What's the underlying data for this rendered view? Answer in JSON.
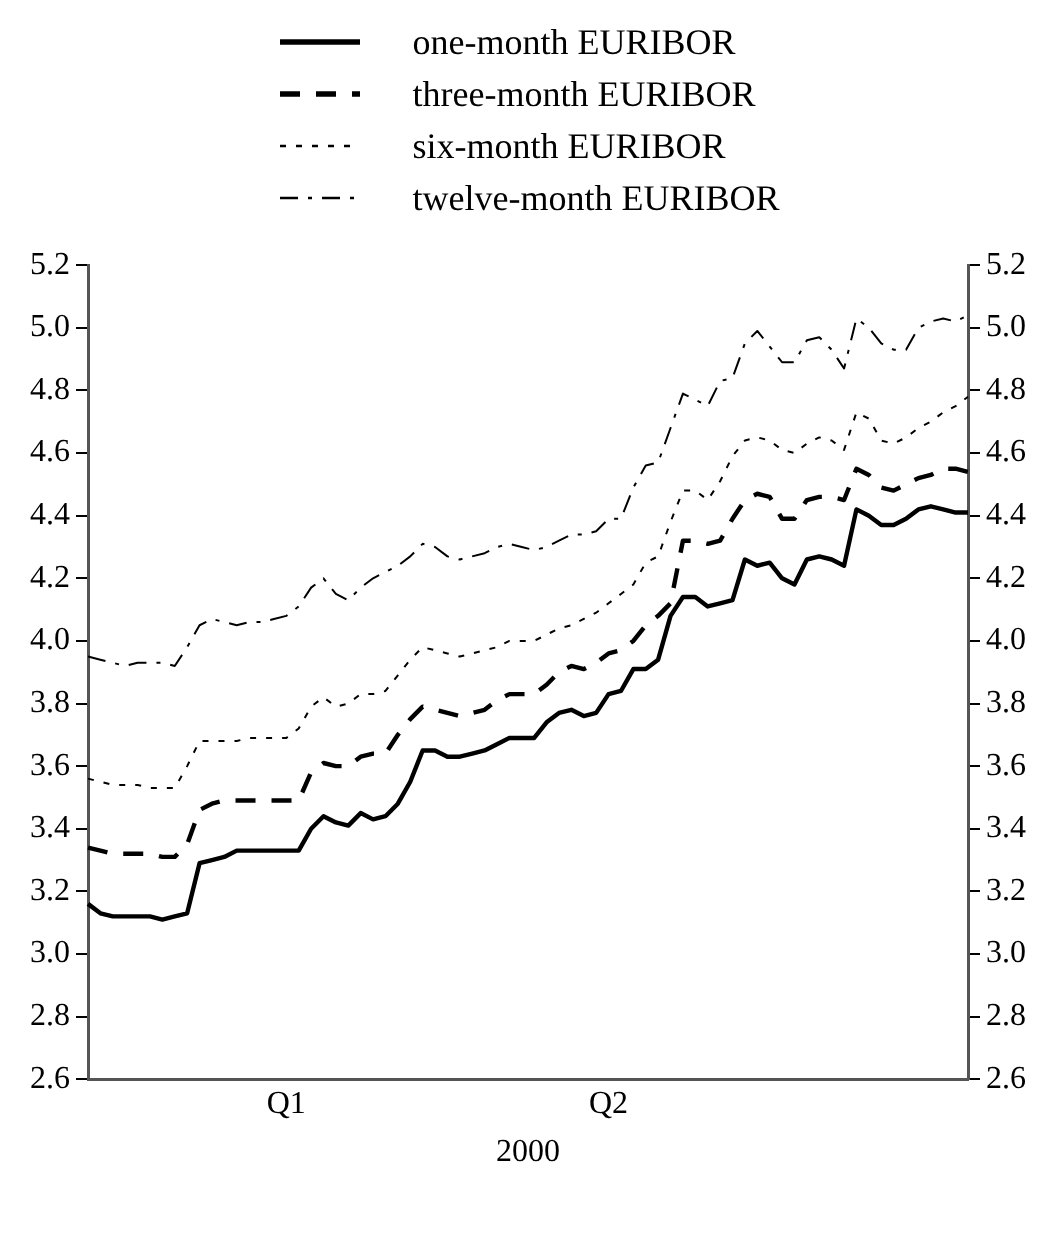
{
  "chart_data": {
    "type": "line",
    "xlabel": "2000",
    "legend": "top",
    "marker": "none",
    "grid": false,
    "categories": [
      null,
      null,
      null,
      null,
      null,
      null,
      null,
      null,
      null,
      null,
      null,
      null,
      null,
      null,
      null,
      null,
      "Q1",
      null,
      null,
      null,
      null,
      null,
      null,
      null,
      null,
      null,
      null,
      null,
      null,
      null,
      null,
      null,
      null,
      null,
      null,
      null,
      null,
      null,
      null,
      null,
      null,
      null,
      "Q2",
      null,
      null,
      null,
      null,
      null,
      null,
      null,
      null,
      null,
      null,
      null,
      null,
      null,
      null,
      null,
      null,
      null,
      null,
      null,
      null,
      null,
      null,
      null,
      null,
      null,
      null,
      null,
      null,
      null
    ],
    "ylim": [
      2.6,
      5.2
    ],
    "yticks": [
      2.6,
      2.8,
      {
        "value": 3,
        "label": "3.0"
      },
      3.2,
      3.4,
      3.6,
      3.8,
      {
        "value": 4,
        "label": "4.0"
      },
      4.2,
      4.4,
      4.6,
      4.8,
      {
        "value": 5,
        "label": "5.0"
      },
      5.2
    ],
    "y2lim": [
      2.6,
      5.2
    ],
    "y2ticks": [
      2.6,
      2.8,
      {
        "value": 3,
        "label": "3.0"
      },
      3.2,
      3.4,
      3.6,
      3.8,
      {
        "value": 4,
        "label": "4.0"
      },
      4.2,
      4.4,
      4.6,
      4.8,
      {
        "value": 5,
        "label": "5.0"
      },
      5.2
    ],
    "series": [
      {
        "name": "one-month EURIBOR",
        "color": "#000000",
        "line_style": "solid",
        "values": [
          3.16,
          3.13,
          3.12,
          3.12,
          3.12,
          3.12,
          3.11,
          3.12,
          3.13,
          3.29,
          3.3,
          3.31,
          3.33,
          3.33,
          3.33,
          3.33,
          3.33,
          3.33,
          3.4,
          3.44,
          3.42,
          3.41,
          3.45,
          3.43,
          3.44,
          3.48,
          3.55,
          3.65,
          3.65,
          3.63,
          3.63,
          3.64,
          3.65,
          3.67,
          3.69,
          3.69,
          3.69,
          3.74,
          3.77,
          3.78,
          3.76,
          3.77,
          3.83,
          3.84,
          3.91,
          3.91,
          3.94,
          4.08,
          4.14,
          4.14,
          4.11,
          4.12,
          4.13,
          4.26,
          4.24,
          4.25,
          4.2,
          4.18,
          4.26,
          4.27,
          4.26,
          4.24,
          4.42,
          4.4,
          4.37,
          4.37,
          4.39,
          4.42,
          4.43,
          4.42,
          4.41,
          4.41
        ]
      },
      {
        "name": "three-month EURIBOR",
        "color": "#000000",
        "line_style": "dashed",
        "values": [
          3.34,
          3.33,
          3.32,
          3.32,
          3.32,
          3.32,
          3.31,
          3.31,
          3.35,
          3.46,
          3.48,
          3.49,
          3.49,
          3.49,
          3.49,
          3.49,
          3.49,
          3.49,
          3.58,
          3.61,
          3.6,
          3.6,
          3.63,
          3.64,
          3.64,
          3.7,
          3.75,
          3.79,
          3.78,
          3.77,
          3.76,
          3.77,
          3.78,
          3.81,
          3.83,
          3.83,
          3.83,
          3.86,
          3.9,
          3.92,
          3.91,
          3.93,
          3.96,
          3.97,
          4.0,
          4.05,
          4.08,
          4.12,
          4.32,
          4.32,
          4.31,
          4.32,
          4.39,
          4.45,
          4.47,
          4.46,
          4.39,
          4.39,
          4.45,
          4.46,
          4.46,
          4.45,
          4.55,
          4.53,
          4.49,
          4.48,
          4.5,
          4.52,
          4.53,
          4.55,
          4.55,
          4.54
        ]
      },
      {
        "name": "six-month EURIBOR",
        "color": "#000000",
        "line_style": "dotted",
        "values": [
          3.56,
          3.55,
          3.54,
          3.54,
          3.54,
          3.53,
          3.53,
          3.53,
          3.6,
          3.68,
          3.68,
          3.68,
          3.68,
          3.69,
          3.69,
          3.69,
          3.69,
          3.72,
          3.79,
          3.82,
          3.79,
          3.8,
          3.83,
          3.83,
          3.84,
          3.89,
          3.94,
          3.98,
          3.97,
          3.96,
          3.95,
          3.96,
          3.97,
          3.98,
          4.0,
          4.0,
          4.0,
          4.02,
          4.04,
          4.05,
          4.07,
          4.09,
          4.12,
          4.15,
          4.18,
          4.25,
          4.27,
          4.38,
          4.48,
          4.48,
          4.45,
          4.51,
          4.59,
          4.64,
          4.65,
          4.64,
          4.61,
          4.6,
          4.63,
          4.65,
          4.64,
          4.61,
          4.73,
          4.71,
          4.64,
          4.63,
          4.65,
          4.68,
          4.7,
          4.73,
          4.75,
          4.78
        ]
      },
      {
        "name": "twelve-month EURIBOR",
        "color": "#000000",
        "line_style": "dashdot",
        "values": [
          3.95,
          3.94,
          3.93,
          3.92,
          3.93,
          3.93,
          3.93,
          3.92,
          3.98,
          4.05,
          4.07,
          4.06,
          4.05,
          4.06,
          4.06,
          4.07,
          4.08,
          4.11,
          4.17,
          4.2,
          4.15,
          4.13,
          4.17,
          4.2,
          4.22,
          4.24,
          4.27,
          4.31,
          4.3,
          4.27,
          4.26,
          4.27,
          4.28,
          4.3,
          4.31,
          4.3,
          4.29,
          4.3,
          4.32,
          4.34,
          4.34,
          4.35,
          4.39,
          4.39,
          4.49,
          4.56,
          4.57,
          4.68,
          4.79,
          4.77,
          4.75,
          4.83,
          4.84,
          4.95,
          4.99,
          4.94,
          4.89,
          4.89,
          4.96,
          4.97,
          4.93,
          4.87,
          5.03,
          5.0,
          4.95,
          4.93,
          4.93,
          5.0,
          5.02,
          5.03,
          5.02,
          5.04
        ]
      }
    ]
  }
}
